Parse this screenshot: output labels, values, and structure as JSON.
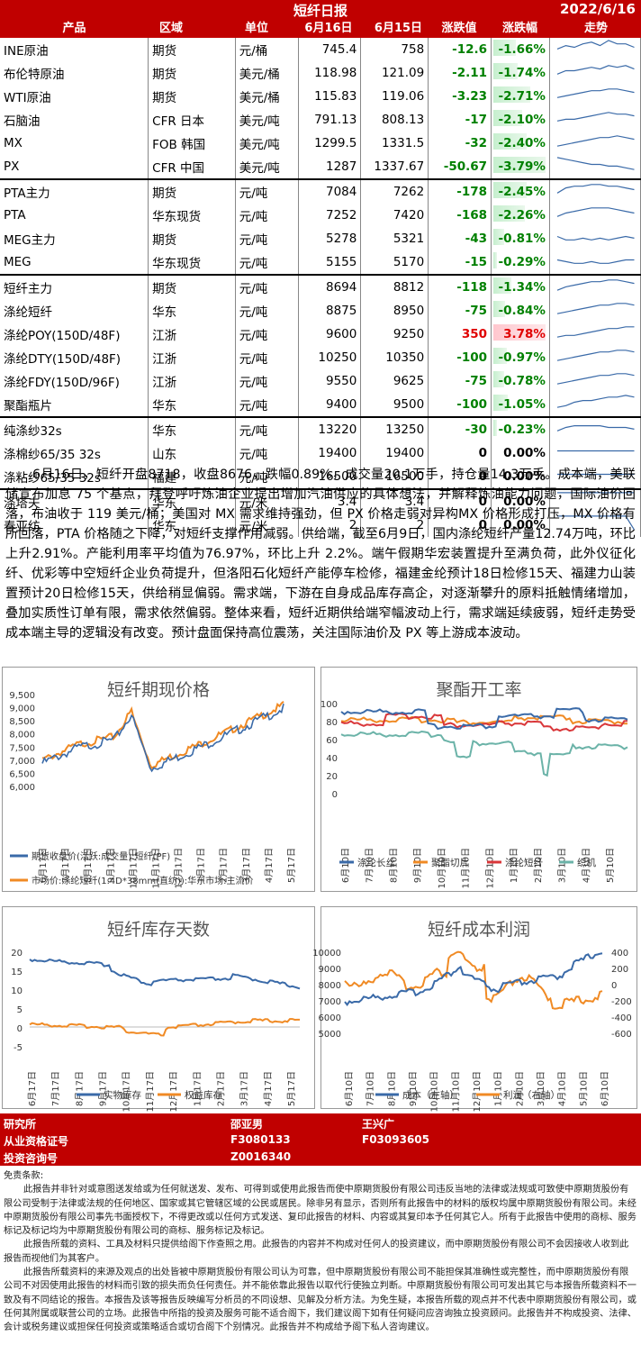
{
  "header": {
    "title": "短纤日报",
    "date": "2022/6/16"
  },
  "columns": [
    "产品",
    "区域",
    "单位",
    "6月16日",
    "6月15日",
    "涨跌值",
    "涨跌幅",
    "走势"
  ],
  "rows": [
    {
      "p": "INE原油",
      "r": "期货",
      "u": "元/桶",
      "a": "745.4",
      "b": "758",
      "c": "-12.6",
      "d": "-1.66%",
      "v": -1.66,
      "spark": [
        4,
        6,
        5,
        7,
        8,
        6,
        9,
        7,
        7,
        5
      ]
    },
    {
      "p": "布伦特原油",
      "r": "期货",
      "u": "美元/桶",
      "a": "118.98",
      "b": "121.09",
      "c": "-2.11",
      "d": "-1.74%",
      "v": -1.74,
      "spark": [
        3,
        5,
        5,
        6,
        7,
        6,
        8,
        7,
        8,
        6
      ]
    },
    {
      "p": "WTI原油",
      "r": "期货",
      "u": "美元/桶",
      "a": "115.83",
      "b": "119.06",
      "c": "-3.23",
      "d": "-2.71%",
      "v": -2.71,
      "spark": [
        3,
        4,
        5,
        6,
        7,
        7,
        8,
        8,
        7,
        6
      ]
    },
    {
      "p": "石脑油",
      "r": "CFR 日本",
      "u": "美元/吨",
      "a": "791.13",
      "b": "808.13",
      "c": "-17",
      "d": "-2.10%",
      "v": -2.1,
      "spark": [
        3,
        4,
        4,
        5,
        6,
        7,
        8,
        7,
        7,
        6
      ]
    },
    {
      "p": "MX",
      "r": "FOB 韩国",
      "u": "美元/吨",
      "a": "1299.5",
      "b": "1331.5",
      "c": "-32",
      "d": "-2.40%",
      "v": -2.4,
      "spark": [
        2,
        3,
        4,
        5,
        6,
        7,
        7,
        8,
        7,
        6
      ]
    },
    {
      "p": "PX",
      "r": "CFR 中国",
      "u": "美元/吨",
      "a": "1287",
      "b": "1337.67",
      "c": "-50.67",
      "d": "-3.79%",
      "v": -3.79,
      "spark": [
        9,
        8,
        7,
        6,
        5,
        5,
        4,
        4,
        3,
        2
      ]
    },
    {
      "p": "PTA主力",
      "r": "期货",
      "u": "元/吨",
      "a": "7084",
      "b": "7262",
      "c": "-178",
      "d": "-2.45%",
      "v": -2.45,
      "spark": [
        3,
        6,
        7,
        7,
        8,
        8,
        7,
        7,
        6,
        5
      ]
    },
    {
      "p": "PTA",
      "r": "华东现货",
      "u": "元/吨",
      "a": "7252",
      "b": "7420",
      "c": "-168",
      "d": "-2.26%",
      "v": -2.26,
      "spark": [
        3,
        5,
        6,
        7,
        8,
        8,
        8,
        7,
        6,
        5
      ]
    },
    {
      "p": "MEG主力",
      "r": "期货",
      "u": "元/吨",
      "a": "5278",
      "b": "5321",
      "c": "-43",
      "d": "-0.81%",
      "v": -0.81,
      "spark": [
        5,
        3,
        3,
        4,
        3,
        4,
        3,
        4,
        5,
        4
      ]
    },
    {
      "p": "MEG",
      "r": "华东现货",
      "u": "元/吨",
      "a": "5155",
      "b": "5170",
      "c": "-15",
      "d": "-0.29%",
      "v": -0.29,
      "spark": [
        5,
        4,
        3,
        3,
        4,
        3,
        3,
        4,
        5,
        5
      ]
    },
    {
      "p": "短纤主力",
      "r": "期货",
      "u": "元/吨",
      "a": "8694",
      "b": "8812",
      "c": "-118",
      "d": "-1.34%",
      "v": -1.34,
      "spark": [
        2,
        4,
        5,
        6,
        7,
        7,
        8,
        8,
        7,
        6
      ]
    },
    {
      "p": "涤纶短纤",
      "r": "华东",
      "u": "元/吨",
      "a": "8875",
      "b": "8950",
      "c": "-75",
      "d": "-0.84%",
      "v": -0.84,
      "spark": [
        2,
        3,
        4,
        5,
        6,
        7,
        7,
        8,
        8,
        7
      ]
    },
    {
      "p": "涤纶POY(150D/48F)",
      "r": "江浙",
      "u": "元/吨",
      "a": "9600",
      "b": "9250",
      "c": "350",
      "d": "3.78%",
      "v": 3.78,
      "spark": [
        2,
        3,
        3,
        4,
        5,
        6,
        7,
        7,
        8,
        8
      ]
    },
    {
      "p": "涤纶DTY(150D/48F)",
      "r": "江浙",
      "u": "元/吨",
      "a": "10250",
      "b": "10350",
      "c": "-100",
      "d": "-0.97%",
      "v": -0.97,
      "spark": [
        2,
        3,
        4,
        5,
        6,
        7,
        7,
        8,
        8,
        7
      ]
    },
    {
      "p": "涤纶FDY(150D/96F)",
      "r": "江浙",
      "u": "元/吨",
      "a": "9550",
      "b": "9625",
      "c": "-75",
      "d": "-0.78%",
      "v": -0.78,
      "spark": [
        2,
        3,
        4,
        5,
        6,
        7,
        7,
        8,
        8,
        7
      ]
    },
    {
      "p": "聚酯瓶片",
      "r": "华东",
      "u": "元/吨",
      "a": "9400",
      "b": "9500",
      "c": "-100",
      "d": "-1.05%",
      "v": -1.05,
      "spark": [
        2,
        3,
        5,
        6,
        6,
        7,
        8,
        8,
        9,
        8
      ]
    },
    {
      "p": "纯涤纱32s",
      "r": "华东",
      "u": "元/吨",
      "a": "13220",
      "b": "13250",
      "c": "-30",
      "d": "-0.23%",
      "v": -0.23,
      "spark": [
        3,
        5,
        6,
        6,
        6,
        6,
        5,
        5,
        5,
        4
      ]
    },
    {
      "p": "涤棉纱65/35 32s",
      "r": "山东",
      "u": "元/吨",
      "a": "19400",
      "b": "19400",
      "c": "0",
      "d": "0.00%",
      "v": 0,
      "spark": [
        5,
        5,
        5,
        5,
        5,
        5,
        5,
        5,
        5,
        5
      ]
    },
    {
      "p": "涤粘纱65/35 32s",
      "r": "福建",
      "u": "元/吨",
      "a": "16500",
      "b": "16500",
      "c": "0",
      "d": "0.00%",
      "v": 0,
      "spark": [
        5,
        5,
        5,
        5,
        5,
        5,
        5,
        5,
        5,
        5
      ]
    },
    {
      "p": "涤塔夫",
      "r": "华东",
      "u": "元/米",
      "a": "3.4",
      "b": "3.4",
      "c": "0",
      "d": "0.00%",
      "v": 0,
      "spark": [
        9,
        9,
        9,
        9,
        9,
        9,
        9,
        9,
        9,
        9
      ]
    },
    {
      "p": "春亚纺",
      "r": "华东",
      "u": "元/米",
      "a": "2",
      "b": "2",
      "c": "0",
      "d": "0.00%",
      "v": 0,
      "spark": [
        9,
        9,
        9,
        9,
        9,
        9,
        9,
        9,
        9,
        1
      ]
    }
  ],
  "commentary": "6月16日，短纤开盘8718，收盘8676，跌幅0.89%，成交量20.1万手，持仓量14.3万手。成本端，美联储宣布加息 75 个基点，拜登呼吁炼油企业提出增加汽油供应的具体想法，并解释炼油能力问题，国际油价回落，布油收于 119 美元/桶；美国对 MX 需求维持强劲，但 PX 价格走弱对异构MX 价格形成打压，MX 价格有所回落，PTA 价格随之下降，对短纤支撑作用减弱。供给端，截至6月9日，国内涤纶短纤产量12.74万吨，环比上升2.91%。产能利用率平均值为76.97%，环比上升 2.2%。端午假期华宏装置提升至满负荷，此外仪征化纤、优彩等中空短纤企业负荷提升，但洛阳石化短纤产能停车检修，福建金纶预计18日检修15天、福建力山装置预计20日检修15天，供给稍显偏弱。需求端，下游在自身成品库存高企，对逐渐攀升的原料抵触情绪增加，叠加实质性订单有限，需求依然偏弱。整体来看，短纤近期供给端窄幅波动上行，需求端延续疲弱，短纤走势受成本端主导的逻辑没有改变。预计盘面保持高位震荡，关注国际油价及 PX 等上游成本波动。",
  "charts": {
    "c1": {
      "title": "短纤期现价格",
      "yticks": [
        "9,500",
        "9,000",
        "8,500",
        "8,000",
        "7,500",
        "7,000",
        "6,500",
        "6,000"
      ],
      "xticks": [
        "6月17日",
        "7月17日",
        "8月17日",
        "9月17日",
        "10月17日",
        "11月17日",
        "12月17日",
        "1月17日",
        "2月17日",
        "3月17日",
        "4月17日",
        "5月17日"
      ],
      "legend1": "期货收盘价(活跃:成交量):短纤(PF)",
      "legend2": "市场价:涤纶短纤(1.4D*38mm(直纺)):华东市场:主流价"
    },
    "c2": {
      "title": "聚酯开工率",
      "yticks": [
        "100",
        "80",
        "60",
        "40",
        "20",
        "0"
      ],
      "xticks": [
        "6月10日",
        "7月10日",
        "8月10日",
        "9月10日",
        "10月10日",
        "11月10日",
        "12月10日",
        "1月10日",
        "2月10日",
        "3月10日",
        "4月10日",
        "5月10日"
      ],
      "legend": [
        "涤纶长丝",
        "聚酯切片",
        "涤纶短纤",
        "织机"
      ]
    },
    "c3": {
      "title": "短纤库存天数",
      "yticks": [
        "20",
        "15",
        "10",
        "5",
        "0",
        "-5"
      ],
      "xticks": [
        "6月17日",
        "7月17日",
        "8月17日",
        "9月17日",
        "10月17日",
        "11月17日",
        "12月17日",
        "1月17日",
        "2月17日",
        "3月17日",
        "4月17日",
        "5月17日"
      ],
      "legend": [
        "实物库存",
        "权益库存"
      ]
    },
    "c4": {
      "title": "短纤成本利润",
      "yticks": [
        "10000",
        "9000",
        "8000",
        "7000",
        "6000",
        "5000"
      ],
      "y2ticks": [
        "400",
        "200",
        "0",
        "-200",
        "-400",
        "-600"
      ],
      "xticks": [
        "6月10日",
        "7月10日",
        "8月10日",
        "9月10日",
        "10月10日",
        "11月10日",
        "12月10日",
        "1月10日",
        "2月10日",
        "3月10日",
        "4月10日",
        "5月10日",
        "6月10日"
      ],
      "legend": [
        "成本（左轴）",
        "利润（右轴）"
      ]
    }
  },
  "footer": {
    "l1": "研究所",
    "l2": "从业资格证号",
    "l3": "投资咨询号",
    "n1": "邵亚男",
    "q1": "F3080133",
    "z1": "Z0016340",
    "n2": "王兴广",
    "q2": "F03093605"
  },
  "disclaimer": {
    "h": "免责条款:",
    "p1": "此报告并非针对或意图送发给或为任何就送发、发布、可得到或使用此报告而使中原期货股份有限公司违反当地的法律或法规或可致使中原期货股份有限公司受制于法律或法规的任何地区、国家或其它管辖区域的公民或居民。除非另有显示，否则所有此报告中的材料的版权均属中原期货股份有限公司。未经中原期货股份有限公司事先书面授权下，不得更改或以任何方式发送、复印此报告的材料、内容或其复印本予任何其它人。所有于此报告中使用的商标、服务标记及标记均为中原期货股份有限公司的商标、服务标记及标记。",
    "p2": "此报告所载的资料、工具及材料只提供给阁下作查照之用。此报告的内容并不构成对任何人的投资建议，而中原期货股份有限公司不会因接收人收到此报告而视他们为其客户。",
    "p3": "此报告所载资料的来源及观点的出处皆被中原期货股份有限公司认为可靠，但中原期货股份有限公司不能担保其准确性或完整性，而中原期货股份有限公司不对因使用此报告的材料而引致的损失而负任何责任。并不能依靠此报告以取代行使独立判断。中原期货股份有限公司可发出其它与本报告所载资料不一致及有不同结论的报告。本报告及该等报告反映编写分析员的不同设想、见解及分析方法。为免生疑，本报告所载的观点并不代表中原期货股份有限公司，或任何其附属或联营公司的立场。此报告中所指的投资及服务可能不适合阁下，我们建议阁下如有任何疑问应咨询独立投资顾问。此报告并不构成投资、法律、会计或税务建议或担保任何投资或策略适合或切合阁下个别情况。此报告并不构成给予阁下私人咨询建议。"
  }
}
